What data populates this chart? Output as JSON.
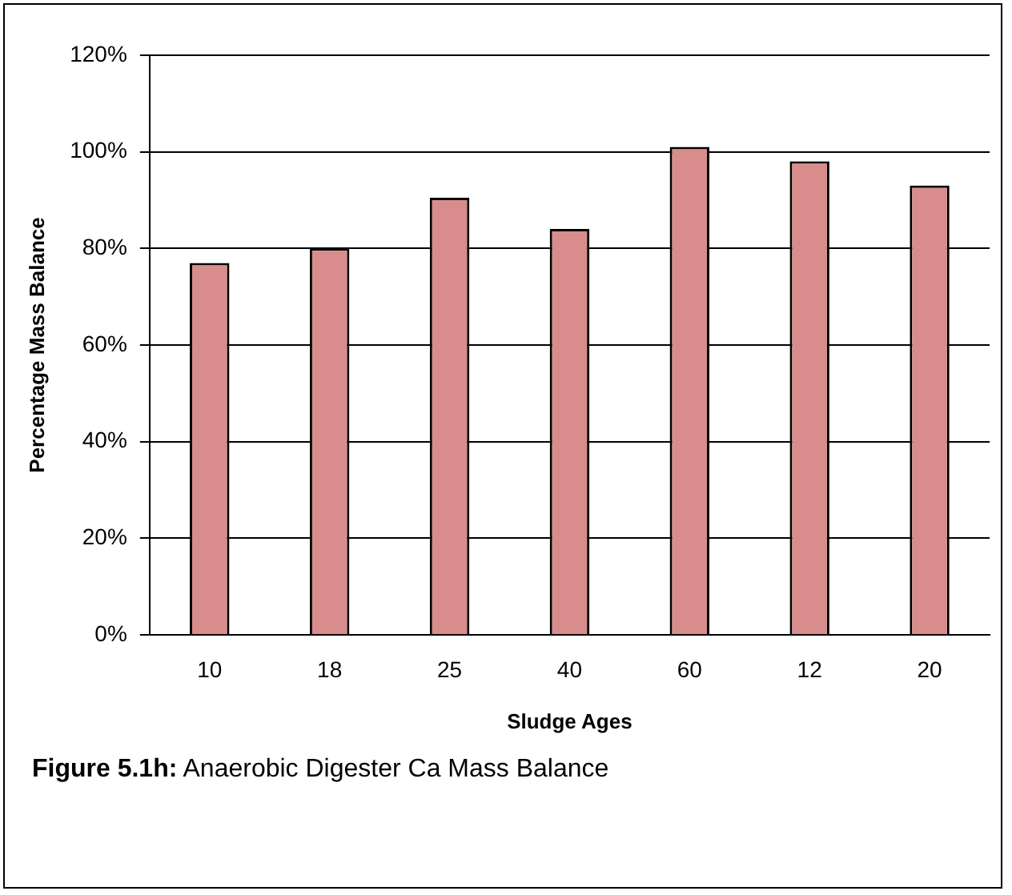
{
  "chart_data": {
    "type": "bar",
    "xlabel": "Sludge Ages",
    "ylabel": "Percentage Mass Balance",
    "categories": [
      "10",
      "18",
      "25",
      "40",
      "60",
      "12",
      "20"
    ],
    "values": [
      77,
      80,
      90.5,
      84,
      101,
      98,
      93
    ],
    "color": "#d98c8c",
    "ylim": [
      0,
      120
    ],
    "yticks": [
      {
        "value": 0,
        "label": "0%"
      },
      {
        "value": 20,
        "label": "20%"
      },
      {
        "value": 40,
        "label": "40%"
      },
      {
        "value": 60,
        "label": "60%"
      },
      {
        "value": 80,
        "label": "80%"
      },
      {
        "value": 100,
        "label": "100%"
      },
      {
        "value": 120,
        "label": "120%"
      }
    ],
    "grid": "y",
    "legend": false,
    "annotations": [
      "Figure 5.1h: Anaerobic Digester Ca Mass Balance"
    ]
  }
}
